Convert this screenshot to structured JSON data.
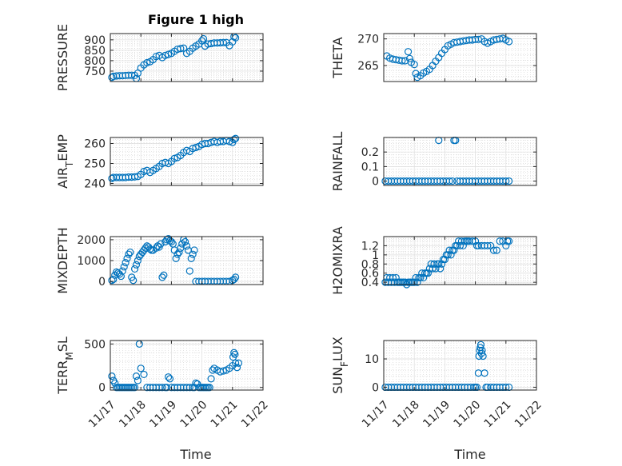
{
  "figure": {
    "title": "Figure 1 high",
    "xlabel": "Time",
    "xtick_labels": [
      "11/17",
      "11/18",
      "11/19",
      "11/20",
      "11/21",
      "11/22"
    ],
    "marker_color": "#0072BD"
  },
  "chart_data": [
    {
      "type": "scatter",
      "title": "Figure 1 high",
      "ylabel": "PRESSURE",
      "xlim": [
        17,
        22
      ],
      "ylim": [
        700,
        930
      ],
      "yticks": [
        750,
        800,
        850,
        900
      ],
      "grid": true,
      "x": [
        17.05,
        17.1,
        17.2,
        17.3,
        17.4,
        17.5,
        17.6,
        17.7,
        17.8,
        17.85,
        17.9,
        18.0,
        18.1,
        18.2,
        18.3,
        18.4,
        18.5,
        18.6,
        18.7,
        18.8,
        18.9,
        19.0,
        19.1,
        19.2,
        19.3,
        19.4,
        19.5,
        19.6,
        19.7,
        19.8,
        19.9,
        20.0,
        20.05,
        20.1,
        20.2,
        20.3,
        20.4,
        20.5,
        20.6,
        20.7,
        20.8,
        20.9,
        21.0,
        21.05,
        21.1
      ],
      "y": [
        720,
        725,
        727,
        728,
        728,
        729,
        730,
        730,
        729,
        715,
        740,
        765,
        780,
        790,
        795,
        805,
        820,
        825,
        815,
        825,
        830,
        835,
        845,
        855,
        858,
        860,
        835,
        845,
        860,
        870,
        880,
        895,
        905,
        870,
        880,
        882,
        885,
        885,
        886,
        887,
        887,
        872,
        890,
        915,
        910
      ]
    },
    {
      "type": "scatter",
      "ylabel": "THETA",
      "xlim": [
        17,
        22
      ],
      "ylim": [
        262,
        271
      ],
      "yticks": [
        265,
        270
      ],
      "grid": true,
      "x": [
        17.1,
        17.2,
        17.3,
        17.4,
        17.5,
        17.6,
        17.7,
        17.8,
        17.85,
        17.9,
        18.0,
        18.05,
        18.1,
        18.2,
        18.3,
        18.4,
        18.5,
        18.6,
        18.7,
        18.8,
        18.9,
        19.0,
        19.1,
        19.2,
        19.3,
        19.4,
        19.5,
        19.6,
        19.7,
        19.8,
        19.9,
        20.0,
        20.1,
        20.2,
        20.3,
        20.4,
        20.5,
        20.6,
        20.7,
        20.8,
        20.9,
        21.0,
        21.1
      ],
      "y": [
        266.8,
        266.4,
        266.2,
        266.1,
        266.0,
        265.9,
        265.9,
        267.6,
        266.3,
        265.6,
        265.2,
        263.5,
        262.8,
        263.1,
        263.6,
        263.9,
        264.3,
        265.0,
        265.8,
        266.5,
        267.3,
        268.0,
        268.7,
        269.0,
        269.3,
        269.4,
        269.5,
        269.6,
        269.7,
        269.8,
        269.8,
        269.9,
        269.9,
        270.0,
        269.5,
        269.2,
        269.5,
        269.8,
        269.9,
        270.0,
        270.1,
        269.8,
        269.5
      ]
    },
    {
      "type": "scatter",
      "ylabel": "AIR_TEMP",
      "xlim": [
        17,
        22
      ],
      "ylim": [
        239,
        263
      ],
      "yticks": [
        240,
        250,
        260
      ],
      "grid": true,
      "x": [
        17.05,
        17.1,
        17.2,
        17.3,
        17.4,
        17.5,
        17.6,
        17.7,
        17.8,
        17.9,
        18.0,
        18.1,
        18.2,
        18.3,
        18.4,
        18.5,
        18.6,
        18.7,
        18.8,
        18.9,
        19.0,
        19.1,
        19.2,
        19.3,
        19.4,
        19.5,
        19.6,
        19.7,
        19.8,
        19.9,
        20.0,
        20.1,
        20.2,
        20.3,
        20.4,
        20.5,
        20.6,
        20.7,
        20.8,
        20.9,
        21.0,
        21.05,
        21.1
      ],
      "y": [
        242.5,
        243.0,
        243.0,
        243.0,
        243.0,
        243.0,
        243.2,
        243.2,
        243.3,
        243.5,
        244.5,
        246.0,
        246.5,
        245.5,
        246.5,
        247.5,
        248.5,
        250.0,
        250.5,
        250.0,
        251.0,
        252.5,
        253.0,
        254.0,
        255.5,
        256.5,
        256.0,
        257.5,
        258.0,
        258.5,
        259.5,
        260.0,
        260.0,
        260.5,
        261.0,
        260.5,
        261.0,
        261.0,
        261.5,
        261.0,
        260.5,
        262.0,
        262.5
      ]
    },
    {
      "type": "scatter",
      "ylabel": "RAINFALL",
      "xlim": [
        17,
        22
      ],
      "ylim": [
        -0.03,
        0.3
      ],
      "yticks": [
        0,
        0.1,
        0.2
      ],
      "grid": true,
      "x": [
        17.05,
        17.15,
        17.25,
        17.35,
        17.45,
        17.55,
        17.65,
        17.75,
        17.85,
        17.95,
        18.05,
        18.15,
        18.25,
        18.35,
        18.45,
        18.55,
        18.65,
        18.75,
        18.8,
        18.85,
        18.95,
        19.05,
        19.15,
        19.25,
        19.3,
        19.35,
        19.4,
        19.5,
        19.6,
        19.7,
        19.8,
        19.9,
        20.0,
        20.1,
        20.2,
        20.3,
        20.4,
        20.5,
        20.6,
        20.7,
        20.8,
        20.9,
        21.0,
        21.1
      ],
      "y": [
        0,
        0,
        0,
        0,
        0,
        0,
        0,
        0,
        0,
        0,
        0,
        0,
        0,
        0,
        0,
        0,
        0,
        0,
        0.28,
        0,
        0,
        0,
        0,
        0,
        0.28,
        0.28,
        0,
        0,
        0,
        0,
        0,
        0,
        0,
        0,
        0,
        0,
        0,
        0,
        0,
        0,
        0,
        0,
        0,
        0
      ]
    },
    {
      "type": "scatter",
      "ylabel": "MIXDEPTH",
      "xlim": [
        17,
        22
      ],
      "ylim": [
        -150,
        2150
      ],
      "yticks": [
        0,
        1000,
        2000
      ],
      "grid": true,
      "x": [
        17.05,
        17.1,
        17.15,
        17.2,
        17.25,
        17.3,
        17.35,
        17.4,
        17.45,
        17.5,
        17.55,
        17.6,
        17.65,
        17.7,
        17.75,
        17.8,
        17.85,
        17.9,
        17.95,
        18.0,
        18.05,
        18.1,
        18.15,
        18.2,
        18.25,
        18.3,
        18.35,
        18.4,
        18.5,
        18.55,
        18.6,
        18.65,
        18.7,
        18.75,
        18.8,
        18.85,
        18.9,
        18.95,
        19.0,
        19.05,
        19.1,
        19.15,
        19.2,
        19.25,
        19.3,
        19.35,
        19.4,
        19.45,
        19.5,
        19.55,
        19.6,
        19.65,
        19.7,
        19.75,
        19.8,
        19.9,
        20.0,
        20.1,
        20.2,
        20.3,
        20.4,
        20.5,
        20.6,
        20.7,
        20.8,
        20.9,
        21.0,
        21.05,
        21.1
      ],
      "y": [
        50,
        100,
        300,
        450,
        400,
        350,
        250,
        500,
        700,
        900,
        1100,
        1300,
        1400,
        200,
        50,
        600,
        800,
        1000,
        1200,
        1300,
        1400,
        1500,
        1600,
        1700,
        1650,
        1550,
        1500,
        1500,
        1600,
        1700,
        1650,
        1800,
        200,
        300,
        1900,
        2000,
        2050,
        1950,
        1900,
        1800,
        1500,
        1100,
        1300,
        1400,
        1600,
        1800,
        2000,
        1900,
        1700,
        1500,
        500,
        1100,
        1300,
        1500,
        0,
        0,
        0,
        0,
        0,
        0,
        0,
        0,
        0,
        0,
        0,
        0,
        50,
        100,
        200
      ]
    },
    {
      "type": "scatter",
      "ylabel": "H2OMIXRA",
      "xlim": [
        17,
        22
      ],
      "ylim": [
        0.35,
        1.4
      ],
      "yticks": [
        0.4,
        0.6,
        0.8,
        1,
        1.2
      ],
      "grid": true,
      "x": [
        17.05,
        17.1,
        17.15,
        17.2,
        17.25,
        17.3,
        17.35,
        17.4,
        17.45,
        17.5,
        17.55,
        17.6,
        17.65,
        17.7,
        17.75,
        17.8,
        17.85,
        17.9,
        17.95,
        18.0,
        18.05,
        18.1,
        18.15,
        18.2,
        18.25,
        18.3,
        18.35,
        18.4,
        18.45,
        18.5,
        18.55,
        18.6,
        18.65,
        18.7,
        18.75,
        18.8,
        18.85,
        18.9,
        18.95,
        19.0,
        19.05,
        19.1,
        19.15,
        19.2,
        19.25,
        19.3,
        19.35,
        19.4,
        19.45,
        19.5,
        19.55,
        19.6,
        19.65,
        19.7,
        19.75,
        19.8,
        19.9,
        20.0,
        20.05,
        20.1,
        20.2,
        20.3,
        20.4,
        20.5,
        20.6,
        20.7,
        20.8,
        20.9,
        21.0,
        21.05,
        21.1
      ],
      "y": [
        0.4,
        0.5,
        0.4,
        0.5,
        0.4,
        0.5,
        0.4,
        0.5,
        0.4,
        0.4,
        0.4,
        0.4,
        0.4,
        0.4,
        0.35,
        0.4,
        0.4,
        0.4,
        0.4,
        0.4,
        0.5,
        0.4,
        0.5,
        0.5,
        0.6,
        0.5,
        0.6,
        0.6,
        0.6,
        0.7,
        0.8,
        0.7,
        0.8,
        0.7,
        0.8,
        0.8,
        0.7,
        0.8,
        0.9,
        0.9,
        1.0,
        1.0,
        1.1,
        1.0,
        1.1,
        1.1,
        1.2,
        1.2,
        1.3,
        1.2,
        1.3,
        1.2,
        1.3,
        1.3,
        1.3,
        1.3,
        1.3,
        1.3,
        1.2,
        1.2,
        1.2,
        1.2,
        1.2,
        1.2,
        1.1,
        1.1,
        1.3,
        1.3,
        1.2,
        1.3,
        1.3
      ]
    },
    {
      "type": "scatter",
      "ylabel": "TERR_MSL",
      "xlim": [
        17,
        22
      ],
      "ylim": [
        -30,
        540
      ],
      "yticks": [
        0,
        500
      ],
      "grid": true,
      "x": [
        17.05,
        17.1,
        17.15,
        17.2,
        17.25,
        17.3,
        17.35,
        17.4,
        17.45,
        17.5,
        17.55,
        17.6,
        17.65,
        17.7,
        17.75,
        17.8,
        17.85,
        17.9,
        17.95,
        18.0,
        18.1,
        18.2,
        18.3,
        18.4,
        18.5,
        18.6,
        18.7,
        18.8,
        18.85,
        18.9,
        18.95,
        19.0,
        19.1,
        19.2,
        19.3,
        19.4,
        19.5,
        19.6,
        19.7,
        19.75,
        19.8,
        19.85,
        19.9,
        19.95,
        20.0,
        20.05,
        20.1,
        20.15,
        20.2,
        20.25,
        20.3,
        20.35,
        20.4,
        20.5,
        20.6,
        20.7,
        20.8,
        20.9,
        21.0,
        21.02,
        21.05,
        21.08,
        21.1,
        21.15,
        21.2
      ],
      "y": [
        130,
        80,
        50,
        0,
        0,
        0,
        0,
        0,
        0,
        0,
        0,
        0,
        0,
        0,
        0,
        0,
        130,
        80,
        500,
        220,
        150,
        0,
        0,
        0,
        0,
        0,
        0,
        0,
        0,
        120,
        100,
        0,
        0,
        0,
        0,
        0,
        0,
        0,
        0,
        0,
        50,
        40,
        0,
        0,
        0,
        0,
        0,
        0,
        0,
        0,
        100,
        200,
        220,
        200,
        180,
        190,
        200,
        220,
        250,
        350,
        400,
        380,
        280,
        230,
        280
      ]
    },
    {
      "type": "scatter",
      "ylabel": "SUN_FLUX",
      "xlim": [
        17,
        22
      ],
      "ylim": [
        -1,
        16.5
      ],
      "yticks": [
        0,
        10
      ],
      "grid": true,
      "x": [
        17.05,
        17.15,
        17.25,
        17.35,
        17.45,
        17.55,
        17.65,
        17.75,
        17.85,
        17.95,
        18.05,
        18.15,
        18.25,
        18.35,
        18.45,
        18.55,
        18.65,
        18.75,
        18.85,
        18.95,
        19.05,
        19.15,
        19.25,
        19.35,
        19.45,
        19.55,
        19.65,
        19.75,
        19.85,
        19.95,
        20.0,
        20.05,
        20.1,
        20.12,
        20.14,
        20.16,
        20.18,
        20.2,
        20.22,
        20.25,
        20.3,
        20.35,
        20.4,
        20.5,
        20.6,
        20.7,
        20.8,
        20.9,
        21.0,
        21.1
      ],
      "y": [
        0,
        0,
        0,
        0,
        0,
        0,
        0,
        0,
        0,
        0,
        0,
        0,
        0,
        0,
        0,
        0,
        0,
        0,
        0,
        0,
        0,
        0,
        0,
        0,
        0,
        0,
        0,
        0,
        0,
        0,
        0,
        0,
        5,
        11,
        13,
        14,
        15,
        12,
        13,
        11,
        5,
        0,
        0,
        0,
        0,
        0,
        0,
        0,
        0,
        0
      ]
    }
  ]
}
